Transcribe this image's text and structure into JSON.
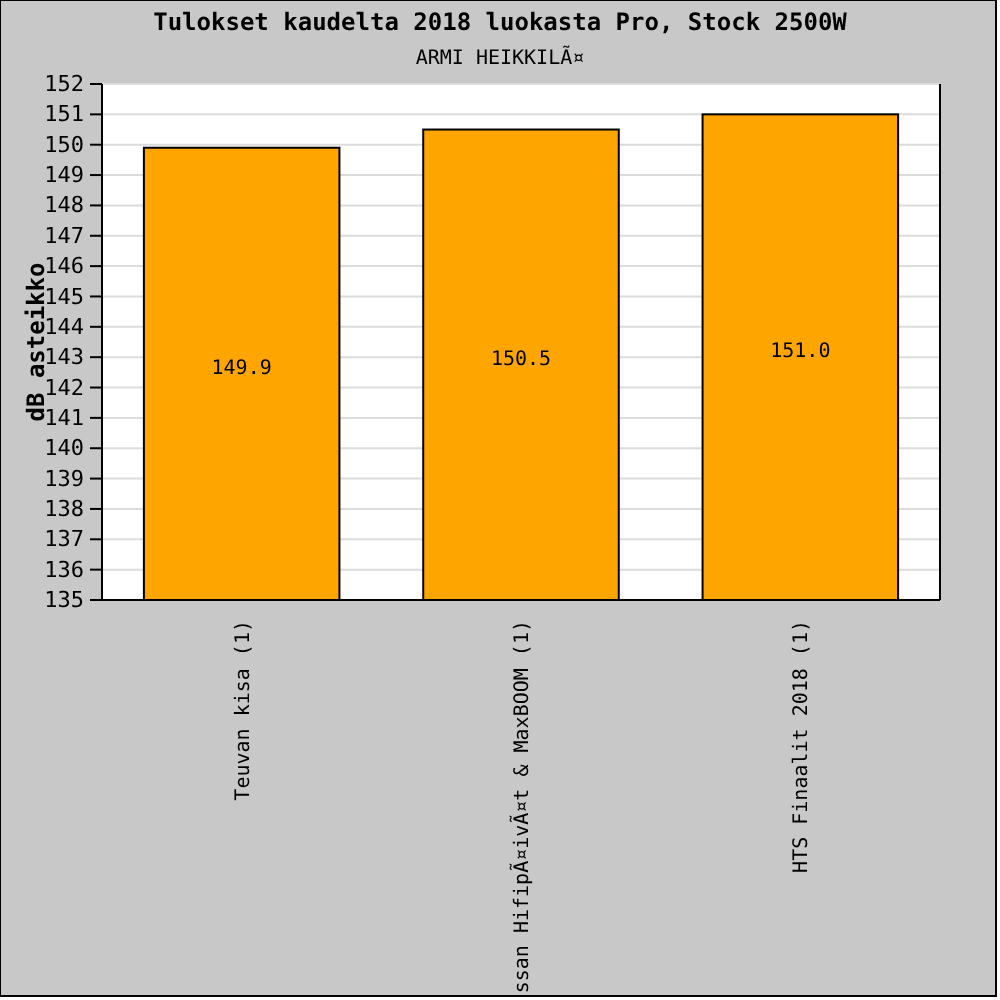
{
  "chart_data": {
    "type": "bar",
    "title": "Tulokset kaudelta 2018 luokasta Pro, Stock 2500W",
    "subtitle": "ARMI HEIKKILÃ¤",
    "ylabel": "dB asteikko",
    "categories": [
      "Teuvan kisa (1)",
      "ssan HifipÃ¤ivÃ¤t & MaxBOOM (1)",
      "HTS Finaalit 2018 (1)"
    ],
    "values": [
      149.9,
      150.5,
      151.0
    ],
    "value_labels": [
      "149.9",
      "150.5",
      "151.0"
    ],
    "color": "#ffa500",
    "ylim": [
      135,
      152
    ],
    "yticks": [
      135,
      136,
      137,
      138,
      139,
      140,
      141,
      142,
      143,
      144,
      145,
      146,
      147,
      148,
      149,
      150,
      151,
      152
    ],
    "grid": "y"
  }
}
